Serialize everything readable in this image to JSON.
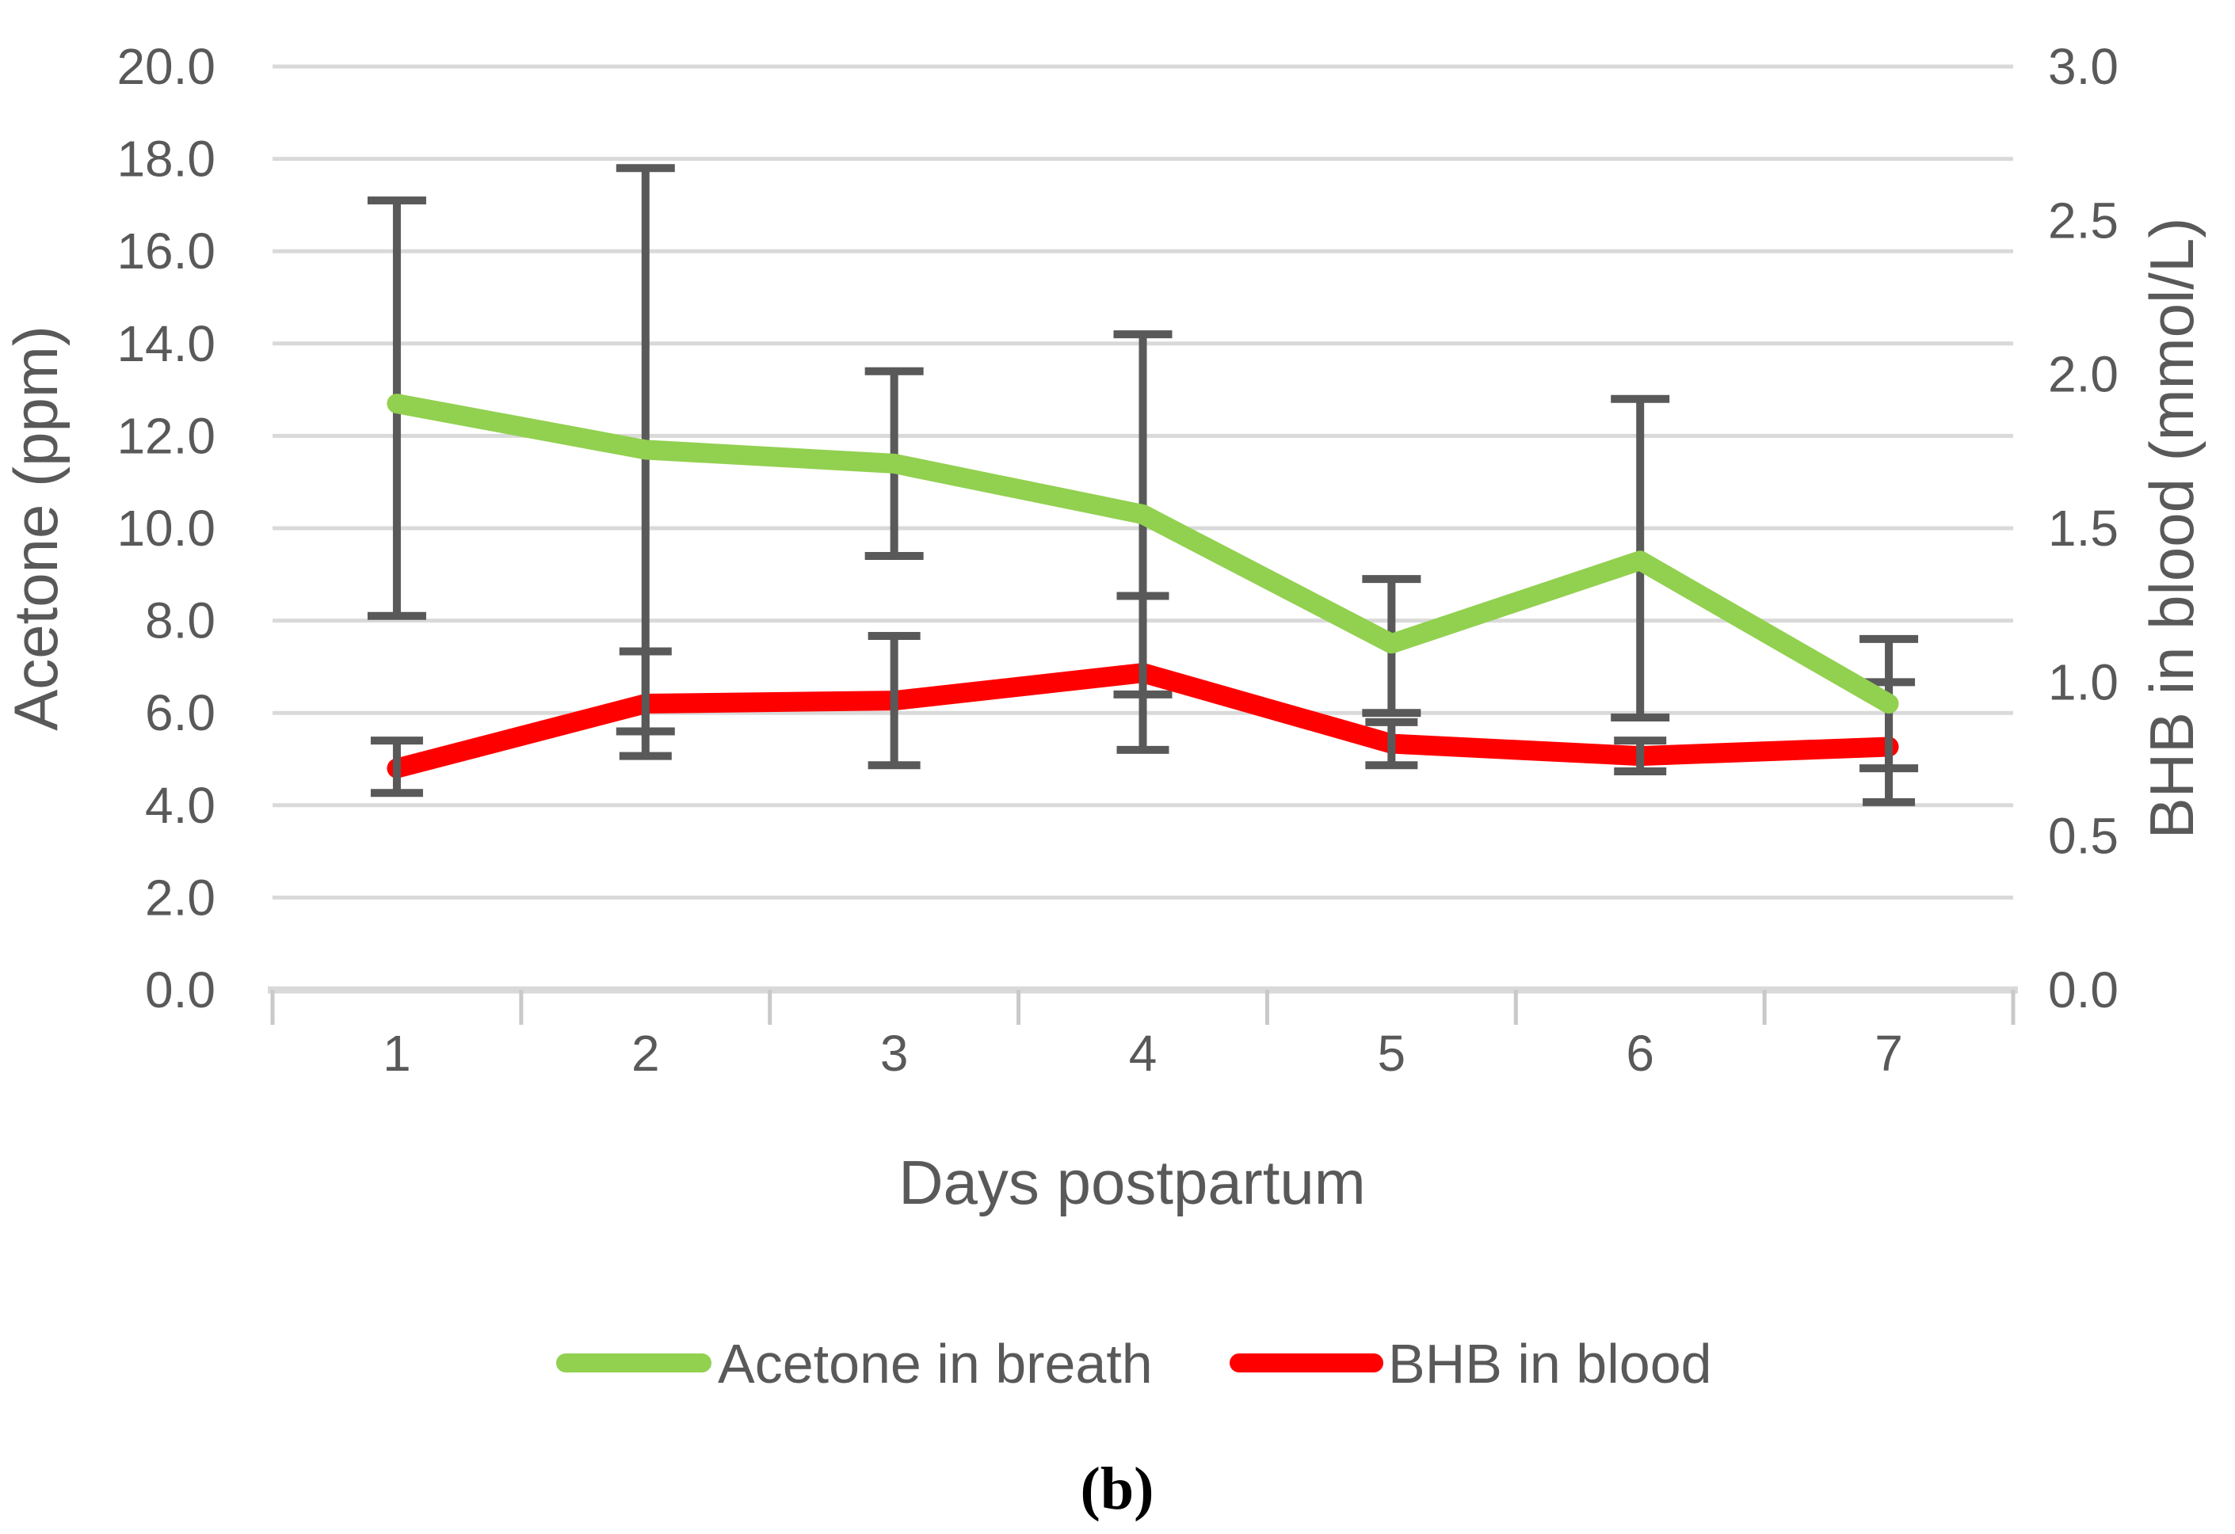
{
  "chart_data": {
    "type": "line",
    "title": "",
    "xlabel": "Days postpartum",
    "categories": [
      "1",
      "2",
      "3",
      "4",
      "5",
      "6",
      "7"
    ],
    "left_axis": {
      "label": "Acetone (ppm)",
      "min": 0,
      "max": 20,
      "step": 2
    },
    "right_axis": {
      "label": "BHB in blood (mmol/L)",
      "min": 0,
      "max": 3,
      "step": 0.5
    },
    "grid": true,
    "legend_position": "bottom",
    "error_bars": true,
    "series": [
      {
        "name": "Acetone in breath",
        "axis": "left",
        "color": "#92d050",
        "values": [
          12.7,
          11.7,
          11.4,
          10.3,
          7.5,
          9.3,
          6.2
        ],
        "error_low": [
          8.1,
          5.6,
          9.4,
          6.4,
          6.0,
          5.9,
          4.8
        ],
        "error_high": [
          17.1,
          17.8,
          13.4,
          14.2,
          8.9,
          12.8,
          7.6
        ]
      },
      {
        "name": "BHB in blood",
        "axis": "right",
        "color": "#ff0000",
        "values": [
          0.72,
          0.93,
          0.94,
          1.03,
          0.8,
          0.76,
          0.79
        ],
        "error_low": [
          0.64,
          0.76,
          0.73,
          0.78,
          0.73,
          0.71,
          0.61
        ],
        "error_high": [
          0.81,
          1.1,
          1.15,
          1.28,
          0.87,
          0.81,
          1.0
        ]
      }
    ]
  },
  "caption": "(b)",
  "style": {
    "grid_color": "#d9d9d9",
    "axis_line_color": "#d9d9d9",
    "tick_mark_color": "#c9c9c9",
    "error_bar_color": "#595959",
    "text_color": "#595959",
    "background": "#ffffff"
  }
}
